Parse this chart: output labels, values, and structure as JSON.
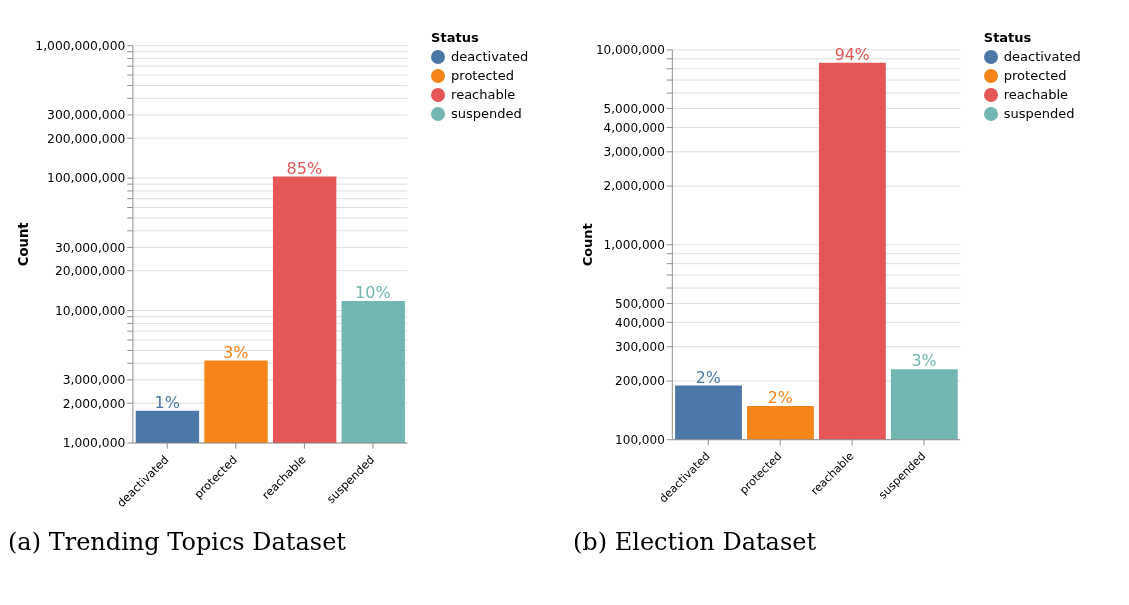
{
  "chart_data": [
    {
      "type": "bar",
      "title": "(a) Trending Topics Dataset",
      "ylabel": "Count",
      "legend_title": "Status",
      "legend": "top right",
      "log": true,
      "grid": "y",
      "stacked": true,
      "categories": [
        "deactivated",
        "protected",
        "reachable",
        "suspended"
      ],
      "series": [
        {
          "name": "deactivated",
          "color": "#4c78a8",
          "values": [
            1750000,
            null,
            null,
            null
          ]
        },
        {
          "name": "protected",
          "color": "#f58518",
          "values": [
            null,
            4200000,
            null,
            null
          ]
        },
        {
          "name": "reachable",
          "color": "#e45756",
          "values": [
            null,
            null,
            103000000,
            null
          ]
        },
        {
          "name": "suspended",
          "color": "#72b7b2",
          "values": [
            null,
            null,
            null,
            11800000
          ]
        }
      ],
      "annotations": [
        {
          "text": "1%",
          "x": "deactivated",
          "y": 1750000
        },
        {
          "text": "3%",
          "x": "protected",
          "y": 4200000
        },
        {
          "text": "85%",
          "x": "reachable",
          "y": 103000000
        },
        {
          "text": "10%",
          "x": "suspended",
          "y": 11800000
        }
      ],
      "ylim": [
        1000000,
        1000000000
      ],
      "yticks": [
        {
          "value": 1000000,
          "label": "1,000,000"
        },
        {
          "value": 2000000,
          "label": "2,000,000"
        },
        {
          "value": 3000000,
          "label": "3,000,000"
        },
        {
          "value": 4000000,
          "label": null
        },
        {
          "value": 5000000,
          "label": null
        },
        {
          "value": 6000000,
          "label": null
        },
        {
          "value": 7000000,
          "label": null
        },
        {
          "value": 8000000,
          "label": null
        },
        {
          "value": 9000000,
          "label": null
        },
        {
          "value": 10000000,
          "label": "10,000,000"
        },
        {
          "value": 20000000,
          "label": "20,000,000"
        },
        {
          "value": 30000000,
          "label": "30,000,000"
        },
        {
          "value": 40000000,
          "label": null
        },
        {
          "value": 50000000,
          "label": null
        },
        {
          "value": 60000000,
          "label": null
        },
        {
          "value": 70000000,
          "label": null
        },
        {
          "value": 80000000,
          "label": null
        },
        {
          "value": 90000000,
          "label": null
        },
        {
          "value": 100000000,
          "label": "100,000,000"
        },
        {
          "value": 200000000,
          "label": "200,000,000"
        },
        {
          "value": 300000000,
          "label": "300,000,000"
        },
        {
          "value": 400000000,
          "label": null
        },
        {
          "value": 500000000,
          "label": null
        },
        {
          "value": 600000000,
          "label": null
        },
        {
          "value": 700000000,
          "label": null
        },
        {
          "value": 800000000,
          "label": null
        },
        {
          "value": 900000000,
          "label": null
        },
        {
          "value": 1000000000,
          "label": "1,000,000,000"
        }
      ]
    },
    {
      "type": "bar",
      "title": "(b) Election Dataset",
      "ylabel": "Count",
      "legend_title": "Status",
      "legend": "top right",
      "log": true,
      "grid": "y",
      "stacked": true,
      "categories": [
        "deactivated",
        "protected",
        "reachable",
        "suspended"
      ],
      "series": [
        {
          "name": "deactivated",
          "color": "#4c78a8",
          "values": [
            190000,
            null,
            null,
            null
          ]
        },
        {
          "name": "protected",
          "color": "#f58518",
          "values": [
            null,
            149000,
            null,
            null
          ]
        },
        {
          "name": "reachable",
          "color": "#e45756",
          "values": [
            null,
            null,
            8580000,
            null
          ]
        },
        {
          "name": "suspended",
          "color": "#72b7b2",
          "values": [
            null,
            null,
            null,
            230000
          ]
        }
      ],
      "annotations": [
        {
          "text": "2%",
          "x": "deactivated",
          "y": 190000
        },
        {
          "text": "2%",
          "x": "protected",
          "y": 149000
        },
        {
          "text": "94%",
          "x": "reachable",
          "y": 8580000
        },
        {
          "text": "3%",
          "x": "suspended",
          "y": 230000
        }
      ],
      "ylim": [
        100000,
        10000000
      ],
      "yticks": [
        {
          "value": 100000,
          "label": "100,000"
        },
        {
          "value": 200000,
          "label": "200,000"
        },
        {
          "value": 300000,
          "label": "300,000"
        },
        {
          "value": 400000,
          "label": "400,000"
        },
        {
          "value": 500000,
          "label": "500,000"
        },
        {
          "value": 600000,
          "label": null
        },
        {
          "value": 700000,
          "label": null
        },
        {
          "value": 800000,
          "label": null
        },
        {
          "value": 900000,
          "label": null
        },
        {
          "value": 1000000,
          "label": "1,000,000"
        },
        {
          "value": 2000000,
          "label": "2,000,000"
        },
        {
          "value": 3000000,
          "label": "3,000,000"
        },
        {
          "value": 4000000,
          "label": "4,000,000"
        },
        {
          "value": 5000000,
          "label": "5,000,000"
        },
        {
          "value": 6000000,
          "label": null
        },
        {
          "value": 7000000,
          "label": null
        },
        {
          "value": 8000000,
          "label": null
        },
        {
          "value": 9000000,
          "label": null
        },
        {
          "value": 10000000,
          "label": "10,000,000"
        }
      ]
    }
  ]
}
